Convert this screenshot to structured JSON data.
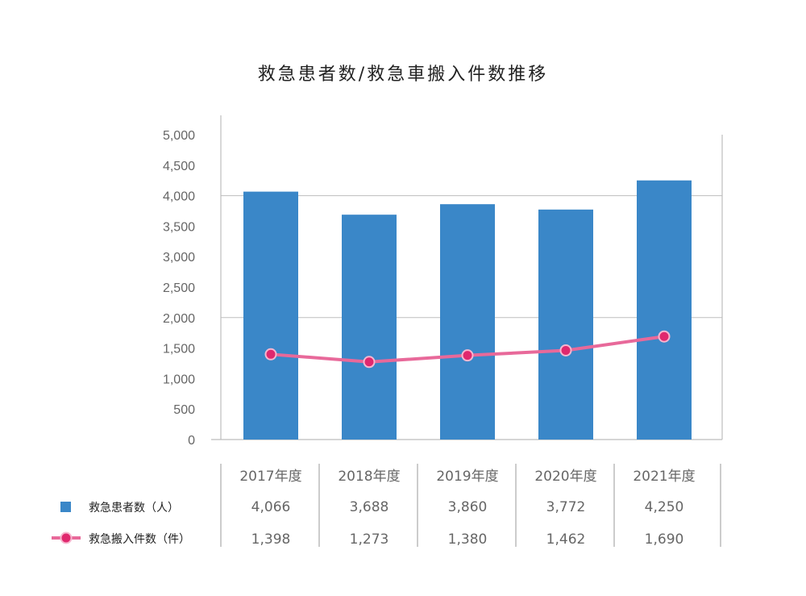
{
  "title": "救急患者数/救急車搬入件数推移",
  "chart_data": {
    "type": "bar",
    "title": "救急患者数/救急車搬入件数推移",
    "categories": [
      "2017年度",
      "2018年度",
      "2019年度",
      "2020年度",
      "2021年度"
    ],
    "ylim": [
      0,
      5000
    ],
    "yticks": [
      "5,000",
      "4,500",
      "4,000",
      "3,500",
      "3,000",
      "2,500",
      "2,000",
      "1,500",
      "1,000",
      "500",
      "0"
    ],
    "grid": true,
    "series": [
      {
        "name": "救急患者数（人）",
        "type": "bar",
        "color": "#3a87c8",
        "values": [
          4066,
          3688,
          3860,
          3772,
          4250
        ],
        "labels": [
          "4,066",
          "3,688",
          "3,860",
          "3,772",
          "4,250"
        ]
      },
      {
        "name": "救急搬入件数（件）",
        "type": "line",
        "color": "#e8699a",
        "marker_fill": "#e0286e",
        "values": [
          1398,
          1273,
          1380,
          1462,
          1690
        ],
        "labels": [
          "1,398",
          "1,273",
          "1,380",
          "1,462",
          "1,690"
        ]
      }
    ]
  }
}
